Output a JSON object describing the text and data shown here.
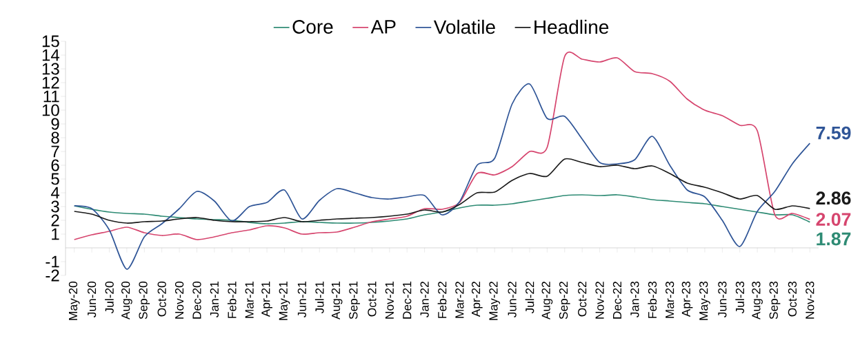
{
  "chart_data": {
    "type": "line",
    "categories": [
      "May-20",
      "Jun-20",
      "Jul-20",
      "Aug-20",
      "Sep-20",
      "Oct-20",
      "Nov-20",
      "Dec-20",
      "Jan-21",
      "Feb-21",
      "Mar-21",
      "Apr-21",
      "May-21",
      "Jun-21",
      "Jul-21",
      "Aug-21",
      "Sep-21",
      "Oct-21",
      "Nov-21",
      "Dec-21",
      "Jan-22",
      "Feb-22",
      "Mar-22",
      "Apr-22",
      "May-22",
      "Jun-22",
      "Jul-22",
      "Aug-22",
      "Sep-22",
      "Oct-22",
      "Nov-22",
      "Dec-22",
      "Jan-23",
      "Feb-23",
      "Mar-23",
      "Apr-23",
      "May-23",
      "Jun-23",
      "Jul-23",
      "Aug-23",
      "Sep-23",
      "Oct-23",
      "Nov-23"
    ],
    "series": [
      {
        "name": "Core",
        "color": "#2e8b74",
        "values": [
          3.05,
          2.8,
          2.6,
          2.5,
          2.45,
          2.3,
          2.2,
          2.1,
          2.05,
          2.0,
          1.85,
          1.75,
          1.8,
          1.9,
          1.85,
          1.8,
          1.8,
          1.85,
          1.95,
          2.1,
          2.4,
          2.6,
          2.9,
          3.1,
          3.1,
          3.2,
          3.4,
          3.6,
          3.8,
          3.85,
          3.8,
          3.85,
          3.7,
          3.5,
          3.4,
          3.3,
          3.2,
          3.0,
          2.8,
          2.6,
          2.4,
          2.4,
          1.87
        ],
        "value_labels": [
          null,
          null,
          null,
          null,
          null,
          null,
          null,
          null,
          null,
          null,
          null,
          null,
          null,
          null,
          null,
          null,
          null,
          null,
          null,
          null,
          null,
          null,
          null,
          null,
          null,
          null,
          null,
          null,
          null,
          null,
          null,
          null,
          null,
          null,
          null,
          null,
          null,
          null,
          null,
          null,
          null,
          null,
          "1.87"
        ]
      },
      {
        "name": "AP",
        "color": "#d6456e",
        "values": [
          0.6,
          0.95,
          1.2,
          1.5,
          1.1,
          0.9,
          1.0,
          0.6,
          0.8,
          1.1,
          1.3,
          1.6,
          1.45,
          1.0,
          1.1,
          1.15,
          1.5,
          1.9,
          2.1,
          2.3,
          2.85,
          2.8,
          3.3,
          5.4,
          5.3,
          5.9,
          7.0,
          7.3,
          13.9,
          13.7,
          13.5,
          13.8,
          12.8,
          12.65,
          12.1,
          10.8,
          10.0,
          9.6,
          8.9,
          8.5,
          2.4,
          2.5,
          2.07
        ],
        "value_labels": [
          null,
          null,
          null,
          null,
          null,
          null,
          null,
          null,
          null,
          null,
          null,
          null,
          null,
          null,
          null,
          null,
          null,
          null,
          null,
          null,
          null,
          null,
          null,
          null,
          null,
          null,
          null,
          null,
          null,
          null,
          null,
          null,
          null,
          null,
          null,
          null,
          null,
          null,
          null,
          null,
          null,
          null,
          "2.07"
        ]
      },
      {
        "name": "Volatile",
        "color": "#2f5597",
        "values": [
          3.05,
          2.85,
          1.3,
          -1.55,
          0.8,
          1.75,
          2.85,
          4.1,
          3.4,
          1.95,
          3.0,
          3.3,
          4.2,
          2.1,
          3.45,
          4.3,
          4.0,
          3.65,
          3.55,
          3.7,
          3.8,
          2.4,
          3.35,
          6.0,
          6.5,
          10.45,
          11.9,
          9.4,
          9.55,
          7.9,
          6.2,
          6.1,
          6.4,
          8.1,
          6.0,
          4.2,
          3.7,
          2.0,
          0.1,
          2.65,
          4.1,
          6.1,
          7.59
        ],
        "value_labels": [
          null,
          null,
          null,
          null,
          null,
          null,
          null,
          null,
          null,
          null,
          null,
          null,
          null,
          null,
          null,
          null,
          null,
          null,
          null,
          null,
          null,
          null,
          null,
          null,
          null,
          null,
          null,
          null,
          null,
          null,
          null,
          null,
          null,
          null,
          null,
          null,
          null,
          null,
          null,
          null,
          null,
          null,
          "7.59"
        ]
      },
      {
        "name": "Headline",
        "color": "#1a1a1a",
        "values": [
          2.65,
          2.45,
          2.0,
          1.8,
          1.9,
          1.95,
          2.1,
          2.2,
          2.0,
          1.9,
          1.9,
          1.95,
          2.2,
          1.9,
          2.0,
          2.1,
          2.15,
          2.2,
          2.3,
          2.45,
          2.75,
          2.6,
          3.15,
          4.0,
          4.05,
          4.9,
          5.4,
          5.2,
          6.45,
          6.2,
          5.9,
          6.0,
          5.75,
          5.95,
          5.4,
          4.7,
          4.4,
          4.0,
          3.55,
          3.8,
          2.8,
          3.05,
          2.86
        ],
        "value_labels": [
          null,
          null,
          null,
          null,
          null,
          null,
          null,
          null,
          null,
          null,
          null,
          null,
          null,
          null,
          null,
          null,
          null,
          null,
          null,
          null,
          null,
          null,
          null,
          null,
          null,
          null,
          null,
          null,
          null,
          null,
          null,
          null,
          null,
          null,
          null,
          null,
          null,
          null,
          null,
          null,
          null,
          null,
          "2.86"
        ]
      }
    ],
    "ylim": [
      -2,
      15
    ],
    "yticks": [
      15,
      14,
      13,
      12,
      11,
      10,
      9,
      8,
      7,
      6,
      5,
      4,
      3,
      2,
      1,
      -1,
      -2
    ],
    "grid": false,
    "legend": "top",
    "marker": "none",
    "line_style": "solid"
  }
}
